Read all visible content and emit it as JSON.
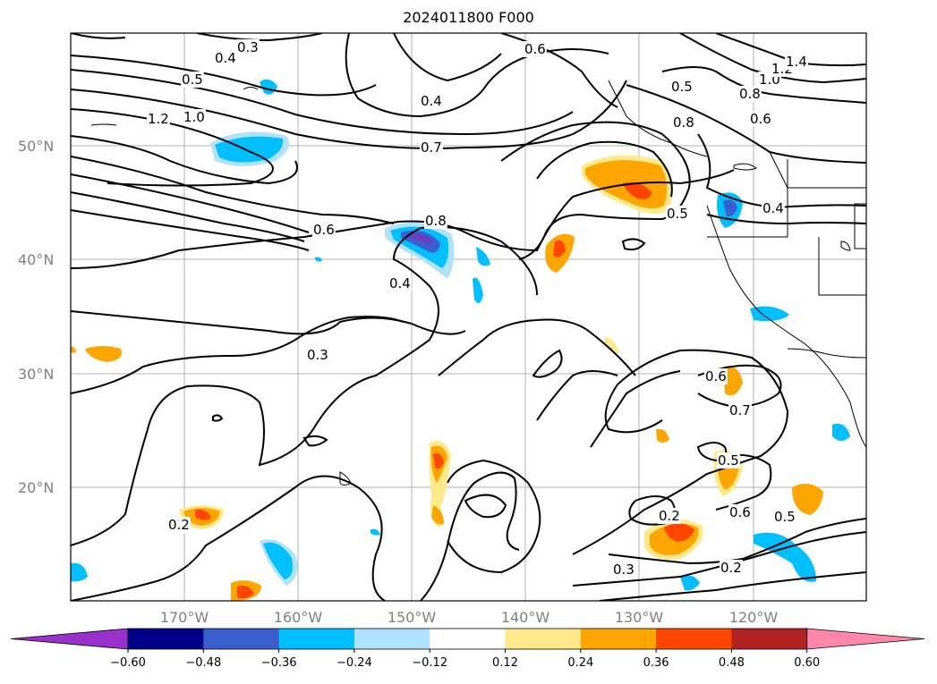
{
  "title": "2024011800 F000",
  "map": {
    "lat_labels": [
      "50°N",
      "40°N",
      "30°N",
      "20°N"
    ],
    "lon_labels": [
      "170°W",
      "160°W",
      "150°W",
      "140°W",
      "130°W",
      "120°W"
    ],
    "contour_labels": [
      "0.3",
      "0.4",
      "0.5",
      "1.2",
      "1.0",
      "0.4",
      "0.7",
      "0.6",
      "0.8",
      "0.4",
      "0.3",
      "0.2",
      "0.5",
      "0.6",
      "0.7",
      "0.5",
      "0.6",
      "0.5",
      "0.2",
      "0.3",
      "0.2",
      "0.4",
      "0.6",
      "1.0",
      "1.2",
      "1.4",
      "0.8",
      "0.5",
      "0.8",
      "0.6"
    ],
    "fill_colors": {
      "neg_strong": "#3b5fd0",
      "neg_mid": "#00bfff",
      "neg_light": "#b0e2fa",
      "pos_light": "#ffe98a",
      "pos_mid": "#ffa500",
      "pos_strong": "#ff4500",
      "pos_max": "#b22222",
      "purple": "#6a3fbf"
    }
  },
  "colorbar": {
    "ticks": [
      "−0.60",
      "−0.48",
      "−0.36",
      "−0.24",
      "−0.12",
      "0.12",
      "0.24",
      "0.36",
      "0.48",
      "0.60"
    ],
    "colors": [
      "#9932cc",
      "#00008b",
      "#3a5fcd",
      "#00bfff",
      "#b0e2ff",
      "#ffffff",
      "#ffe88a",
      "#ffa500",
      "#ff4500",
      "#b22222",
      "#ff88aa"
    ]
  }
}
